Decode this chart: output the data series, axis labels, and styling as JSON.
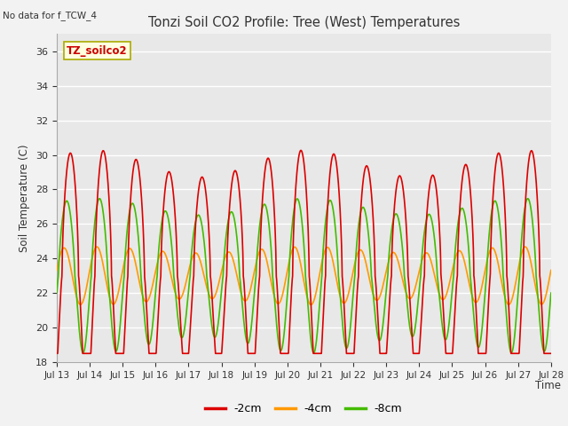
{
  "title": "Tonzi Soil CO2 Profile: Tree (West) Temperatures",
  "subtitle": "No data for f_TCW_4",
  "ylabel": "Soil Temperature (C)",
  "xlabel": "Time",
  "ylim": [
    18,
    37
  ],
  "yticks": [
    18,
    20,
    22,
    24,
    26,
    28,
    30,
    32,
    34,
    36
  ],
  "legend_labels": [
    "-2cm",
    "-4cm",
    "-8cm"
  ],
  "legend_colors": [
    "#dd0000",
    "#ff9900",
    "#44bb00"
  ],
  "inset_label": "TZ_soilco2",
  "fig_bg": "#f2f2f2",
  "plot_bg": "#e8e8e8",
  "x_start": 13,
  "x_end": 28,
  "xtick_positions": [
    13,
    14,
    15,
    16,
    17,
    18,
    19,
    20,
    21,
    22,
    23,
    24,
    25,
    26,
    27,
    28
  ],
  "xtick_labels": [
    "Jul 13",
    "Jul 14",
    "Jul 15",
    "Jul 16",
    "Jul 17",
    "Jul 18",
    "Jul 19",
    "Jul 20",
    "Jul 21",
    "Jul 22",
    "Jul 23",
    "Jul 24",
    "Jul 25",
    "Jul 26",
    "Jul 27",
    "Jul 28"
  ]
}
